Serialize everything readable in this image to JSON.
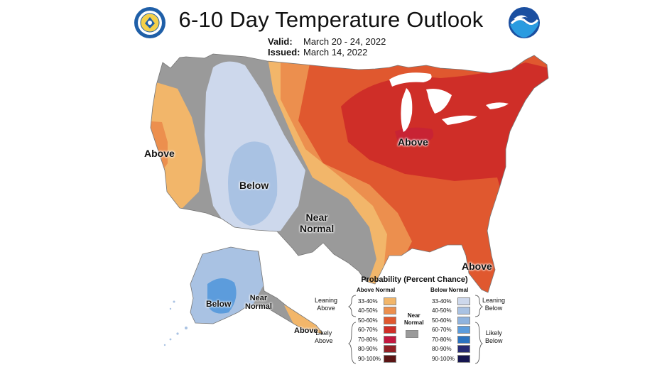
{
  "header": {
    "title": "6-10 Day Temperature Outlook",
    "valid_label": "Valid:",
    "valid_value": "March 20 - 24, 2022",
    "issued_label": "Issued:",
    "issued_value": "March 14, 2022"
  },
  "logos": {
    "left": "doc-seal",
    "right": "noaa-logo"
  },
  "map_labels": {
    "west_above": "Above",
    "west_below": "Below",
    "near_normal": "Near\nNormal",
    "east_above": "Above",
    "florida_above": "Above",
    "alaska_below": "Below",
    "alaska_near": "Near\nNormal",
    "alaska_above": "Above"
  },
  "legend": {
    "title": "Probability (Percent Chance)",
    "above_header": "Above Normal",
    "below_header": "Below Normal",
    "leaning_above": "Leaning\nAbove",
    "likely_above": "Likely\nAbove",
    "leaning_below": "Leaning\nBelow",
    "likely_below": "Likely\nBelow",
    "near_normal": "Near\nNormal",
    "ranges": [
      "33-40%",
      "40-50%",
      "50-60%",
      "60-70%",
      "70-80%",
      "80-90%",
      "90-100%"
    ],
    "above_colors": [
      "#f2b66a",
      "#ec8f4e",
      "#e0582f",
      "#cf2e28",
      "#c2183f",
      "#912025",
      "#5b1414"
    ],
    "below_colors": [
      "#cdd8ec",
      "#a9c2e3",
      "#8fb3de",
      "#5c9cdc",
      "#2b73c0",
      "#262a72",
      "#161650"
    ],
    "near_color": "#9a9a9a"
  }
}
